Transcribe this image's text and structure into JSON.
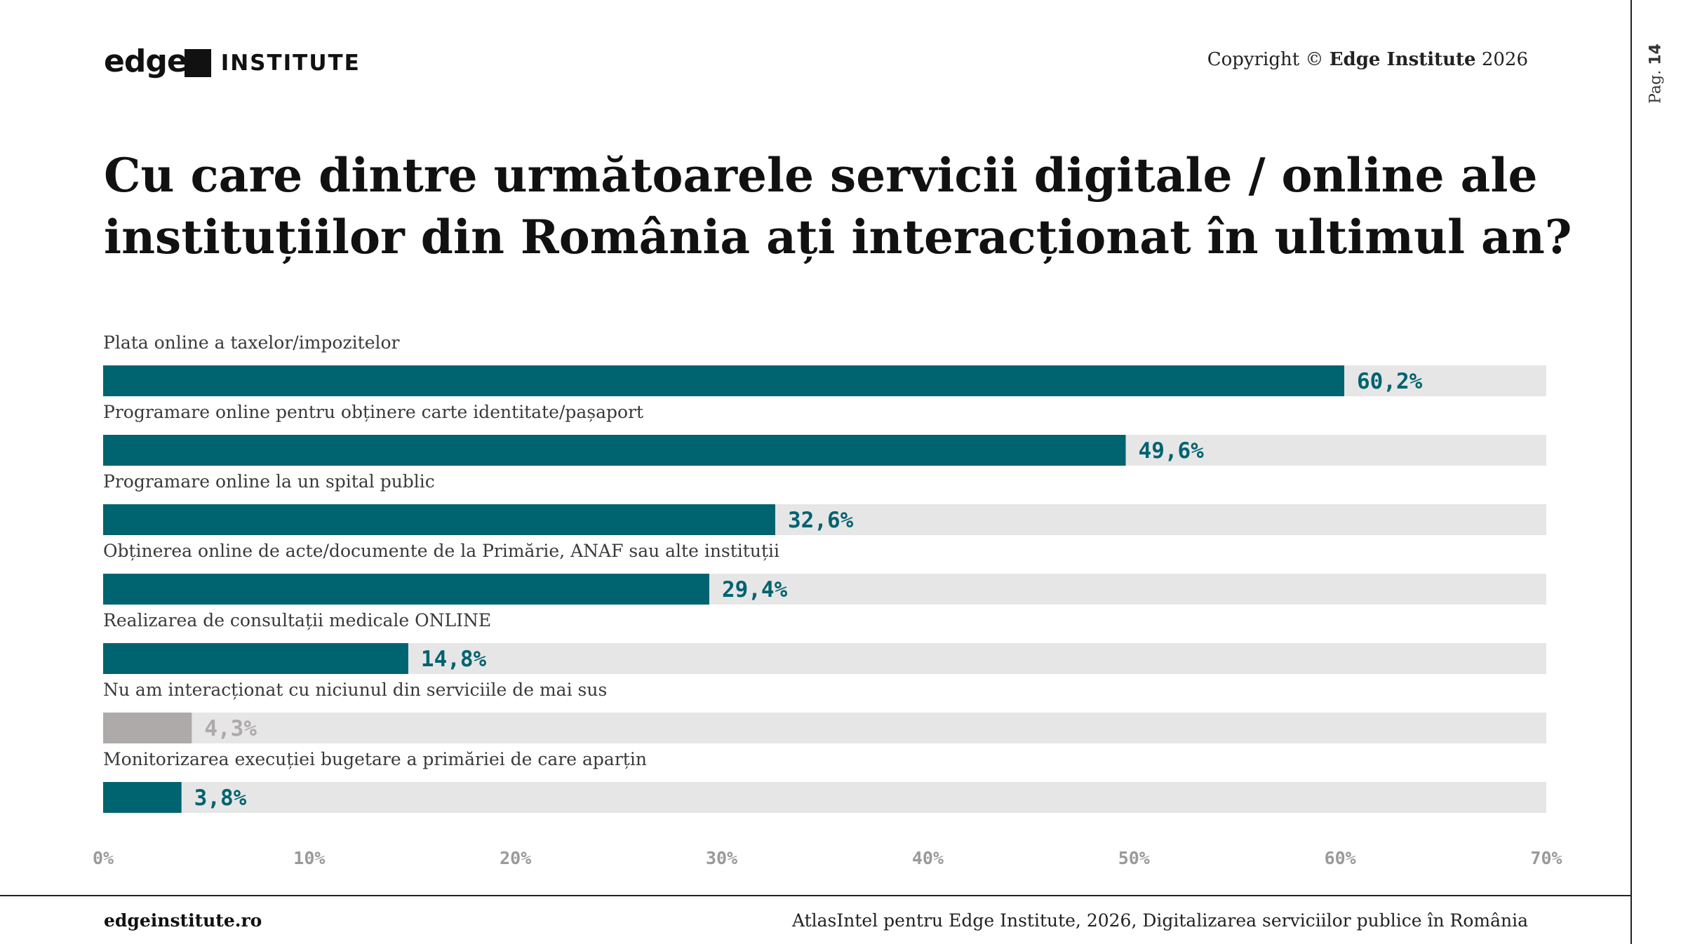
{
  "header": {
    "logo_text": "edge",
    "logo_suffix": "INSTITUTE",
    "copyright_prefix": "Copyright ©",
    "copyright_brand": "Edge Institute",
    "copyright_year": "2026"
  },
  "page": {
    "label": "Pag.",
    "number": "14"
  },
  "footer": {
    "site": "edgeinstitute.ro",
    "source": "AtlasIntel pentru Edge Institute, 2026, Digitalizarea serviciilor publice în România"
  },
  "colors": {
    "primary": "#006370",
    "muted": "#aeaaaa",
    "track": "#e6e6e6",
    "axis": "#9a9a9a"
  },
  "chart_data": {
    "type": "bar",
    "orientation": "horizontal",
    "title": "Cu care dintre următoarele servicii digitale / online ale instituțiilor din România ați interacționat în ultimul an?",
    "categories": [
      "Plata online a taxelor/impozitelor",
      "Programare online pentru obținere carte identitate/pașaport",
      "Programare online la un spital public",
      "Obținerea online de acte/documente de la Primărie, ANAF sau alte instituții",
      "Realizarea de consultații medicale ONLINE",
      "Nu am interacționat cu niciunul din serviciile de mai sus",
      "Monitorizarea execuției bugetare a primăriei de care aparțin"
    ],
    "values": [
      60.2,
      49.6,
      32.6,
      29.4,
      14.8,
      4.3,
      3.8
    ],
    "value_labels": [
      "60,2%",
      "49,6%",
      "32,6%",
      "29,4%",
      "14,8%",
      "4,3%",
      "3,8%"
    ],
    "muted_index": 5,
    "xlim": [
      0,
      70
    ],
    "xticks": [
      0,
      10,
      20,
      30,
      40,
      50,
      60,
      70
    ],
    "xtick_labels": [
      "0%",
      "10%",
      "20%",
      "30%",
      "40%",
      "50%",
      "60%",
      "70%"
    ],
    "unit": "%",
    "grid": false,
    "legend": "none"
  }
}
